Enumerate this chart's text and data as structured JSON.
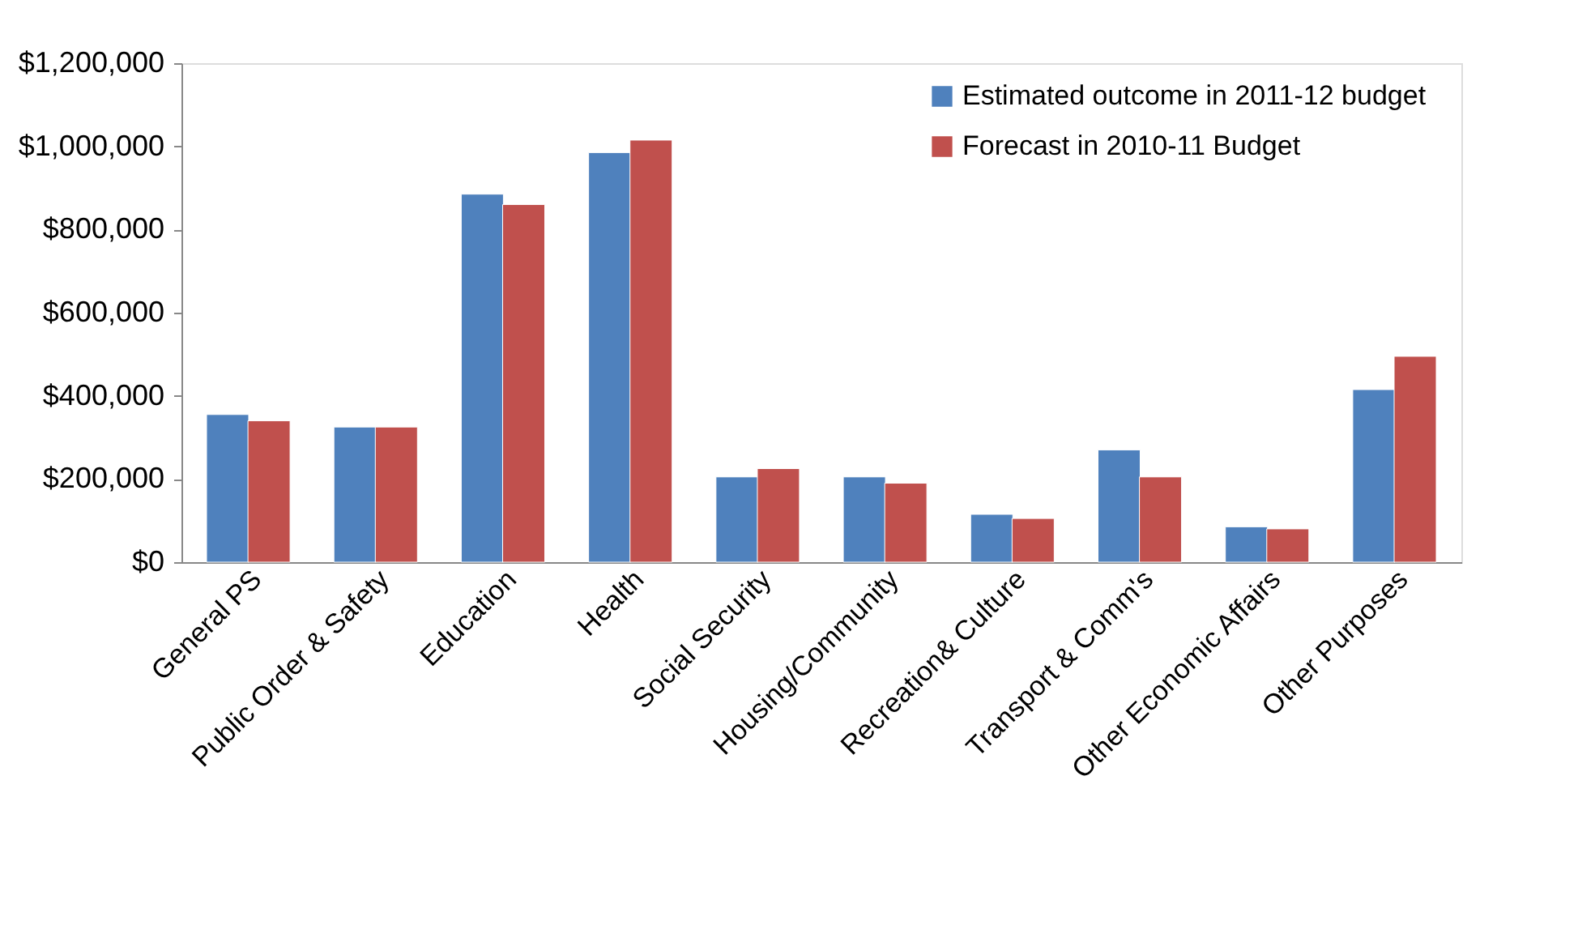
{
  "chart_data": {
    "type": "bar",
    "categories": [
      "General PS",
      "Public Order & Safety",
      "Education",
      "Health",
      "Social Security",
      "Housing/Community",
      "Recreation& Culture",
      "Transport & Comm's",
      "Other Economic Affairs",
      "Other Purposes"
    ],
    "series": [
      {
        "name": "Estimated  outcome  in 2011-12 budget",
        "color": "#4f81bd",
        "values": [
          355000,
          325000,
          885000,
          985000,
          205000,
          205000,
          115000,
          270000,
          85000,
          415000
        ]
      },
      {
        "name": "Forecast in 2010-11 Budget",
        "color": "#c0504d",
        "values": [
          340000,
          325000,
          860000,
          1015000,
          225000,
          190000,
          105000,
          205000,
          80000,
          495000
        ]
      }
    ],
    "ylim": [
      0,
      1200000
    ],
    "yticks": [
      {
        "value": 0,
        "label": "$0"
      },
      {
        "value": 200000,
        "label": "$200,000"
      },
      {
        "value": 400000,
        "label": "$400,000"
      },
      {
        "value": 600000,
        "label": "$600,000"
      },
      {
        "value": 800000,
        "label": "$800,000"
      },
      {
        "value": 1000000,
        "label": "$1,000,000"
      },
      {
        "value": 1200000,
        "label": "$1,200,000"
      }
    ],
    "grid": false,
    "legend": "top right"
  }
}
